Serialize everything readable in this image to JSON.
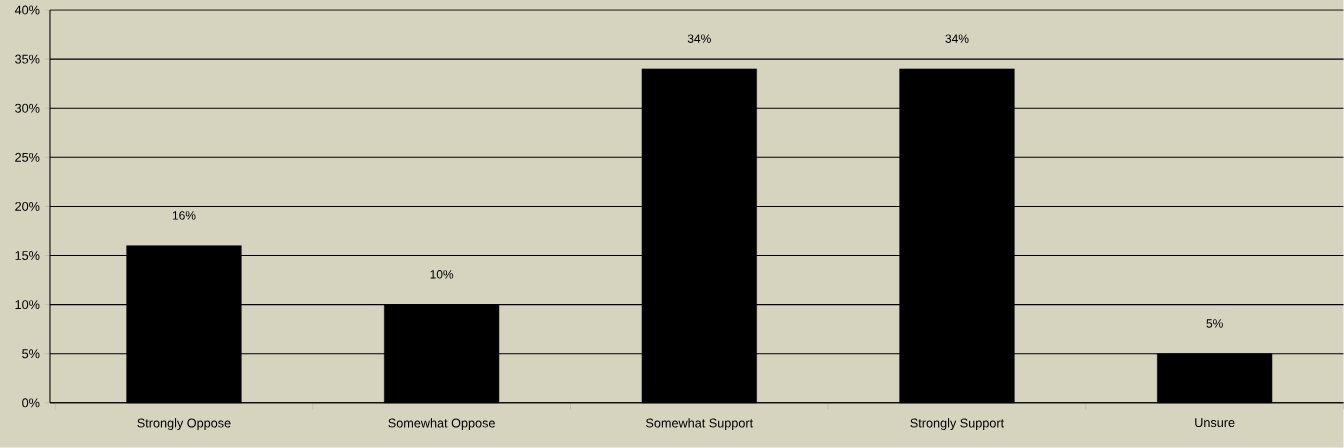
{
  "chart_data": {
    "type": "bar",
    "categories": [
      "Strongly Oppose",
      "Somewhat Oppose",
      "Somewhat Support",
      "Strongly Support",
      "Unsure"
    ],
    "values": [
      16,
      10,
      34,
      34,
      5
    ],
    "value_labels": [
      "16%",
      "10%",
      "34%",
      "34%",
      "5%"
    ],
    "color": "#000000",
    "ylim": [
      0,
      40
    ],
    "yticks": [
      {
        "value": 0,
        "label": "0%"
      },
      {
        "value": 5,
        "label": "5%"
      },
      {
        "value": 10,
        "label": "10%"
      },
      {
        "value": 15,
        "label": "15%"
      },
      {
        "value": 20,
        "label": "20%"
      },
      {
        "value": 25,
        "label": "25%"
      },
      {
        "value": 30,
        "label": "30%"
      },
      {
        "value": 35,
        "label": "35%"
      },
      {
        "value": 40,
        "label": "40%"
      }
    ],
    "grid": "y"
  }
}
